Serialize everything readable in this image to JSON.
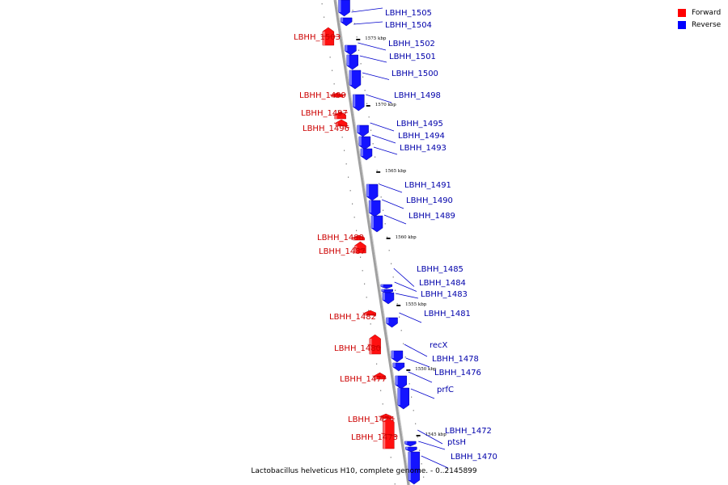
{
  "legend": {
    "forward_label": "Forward",
    "reverse_label": "Reverse",
    "forward_color": "#ff0000",
    "reverse_color": "#0000ff"
  },
  "caption": "Lactobacillus helveticus H10, complete genome. - 0..2145899",
  "colors": {
    "forward_label": "#cc0000",
    "reverse_label": "#0000aa",
    "axis": "#a0a0a0"
  },
  "ticks": [
    "1575 kbp",
    "1570 kbp",
    "1565 kbp",
    "1560 kbp",
    "1555 kbp",
    "1550 kbp",
    "1545 kbp"
  ],
  "genes": [
    {
      "name": "LBHH_1505",
      "strand": "reverse"
    },
    {
      "name": "LBHH_1504",
      "strand": "reverse"
    },
    {
      "name": "LBHH_1503",
      "strand": "forward"
    },
    {
      "name": "LBHH_1502",
      "strand": "reverse"
    },
    {
      "name": "LBHH_1501",
      "strand": "reverse"
    },
    {
      "name": "LBHH_1500",
      "strand": "reverse"
    },
    {
      "name": "LBHH_1499",
      "strand": "forward"
    },
    {
      "name": "LBHH_1498",
      "strand": "reverse"
    },
    {
      "name": "LBHH_1497",
      "strand": "forward"
    },
    {
      "name": "LBHH_1496",
      "strand": "forward"
    },
    {
      "name": "LBHH_1495",
      "strand": "reverse"
    },
    {
      "name": "LBHH_1494",
      "strand": "reverse"
    },
    {
      "name": "LBHH_1493",
      "strand": "reverse"
    },
    {
      "name": "LBHH_1491",
      "strand": "reverse"
    },
    {
      "name": "LBHH_1490",
      "strand": "reverse"
    },
    {
      "name": "LBHH_1489",
      "strand": "reverse"
    },
    {
      "name": "LBHH_1488",
      "strand": "forward"
    },
    {
      "name": "LBHH_1487",
      "strand": "forward"
    },
    {
      "name": "LBHH_1485",
      "strand": "reverse"
    },
    {
      "name": "LBHH_1484",
      "strand": "reverse"
    },
    {
      "name": "LBHH_1483",
      "strand": "reverse"
    },
    {
      "name": "LBHH_1482",
      "strand": "forward"
    },
    {
      "name": "LBHH_1481",
      "strand": "reverse"
    },
    {
      "name": "LBHH_1480",
      "strand": "forward"
    },
    {
      "name": "recX",
      "strand": "reverse"
    },
    {
      "name": "LBHH_1478",
      "strand": "reverse"
    },
    {
      "name": "LBHH_1477",
      "strand": "forward"
    },
    {
      "name": "LBHH_1476",
      "strand": "reverse"
    },
    {
      "name": "prfC",
      "strand": "reverse"
    },
    {
      "name": "LBHH_1474",
      "strand": "forward"
    },
    {
      "name": "LBHH_1473",
      "strand": "forward"
    },
    {
      "name": "LBHH_1472",
      "strand": "reverse"
    },
    {
      "name": "ptsH",
      "strand": "reverse"
    },
    {
      "name": "LBHH_1470",
      "strand": "reverse"
    }
  ]
}
